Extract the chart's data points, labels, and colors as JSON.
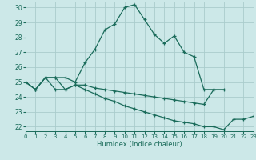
{
  "xlabel": "Humidex (Indice chaleur)",
  "background_color": "#cce8e8",
  "grid_color": "#aacccc",
  "line_color": "#1a6b5a",
  "xlim": [
    0,
    23
  ],
  "ylim": [
    21.7,
    30.4
  ],
  "xticks": [
    0,
    1,
    2,
    3,
    4,
    5,
    6,
    7,
    8,
    9,
    10,
    11,
    12,
    13,
    14,
    15,
    16,
    17,
    18,
    19,
    20,
    21,
    22,
    23
  ],
  "yticks": [
    22,
    23,
    24,
    25,
    26,
    27,
    28,
    29,
    30
  ],
  "series": [
    {
      "x": [
        0,
        1,
        2,
        3,
        4,
        5,
        6,
        7,
        8,
        9,
        10,
        11,
        12,
        13,
        14,
        15,
        16,
        17,
        18,
        19,
        20,
        21,
        22,
        23
      ],
      "y": [
        25.0,
        24.5,
        25.3,
        25.3,
        25.3,
        25.0,
        26.3,
        27.2,
        28.5,
        28.9,
        30.0,
        30.2,
        29.2,
        28.2,
        27.6,
        28.1,
        27.0,
        26.7,
        24.5,
        24.5,
        null,
        null,
        null,
        null
      ]
    },
    {
      "x": [
        0,
        1,
        2,
        3,
        4,
        5,
        6,
        7,
        8,
        9,
        10,
        11,
        12,
        13,
        14,
        15,
        16,
        17,
        18,
        19,
        20,
        21,
        22,
        23
      ],
      "y": [
        25.0,
        24.5,
        25.3,
        25.3,
        24.5,
        24.8,
        24.8,
        24.6,
        24.5,
        24.4,
        24.3,
        24.2,
        24.1,
        24.0,
        23.9,
        23.8,
        23.7,
        23.6,
        23.5,
        24.5,
        24.5,
        null,
        null,
        null
      ]
    },
    {
      "x": [
        0,
        1,
        2,
        3,
        4,
        5,
        6,
        7,
        8,
        9,
        10,
        11,
        12,
        13,
        14,
        15,
        16,
        17,
        18,
        19,
        20,
        21,
        22,
        23
      ],
      "y": [
        25.0,
        24.5,
        25.3,
        24.5,
        24.5,
        24.8,
        24.5,
        24.2,
        23.9,
        23.7,
        23.4,
        23.2,
        23.0,
        22.8,
        22.6,
        22.4,
        22.3,
        22.2,
        22.0,
        22.0,
        21.8,
        22.5,
        22.5,
        22.7
      ]
    }
  ]
}
